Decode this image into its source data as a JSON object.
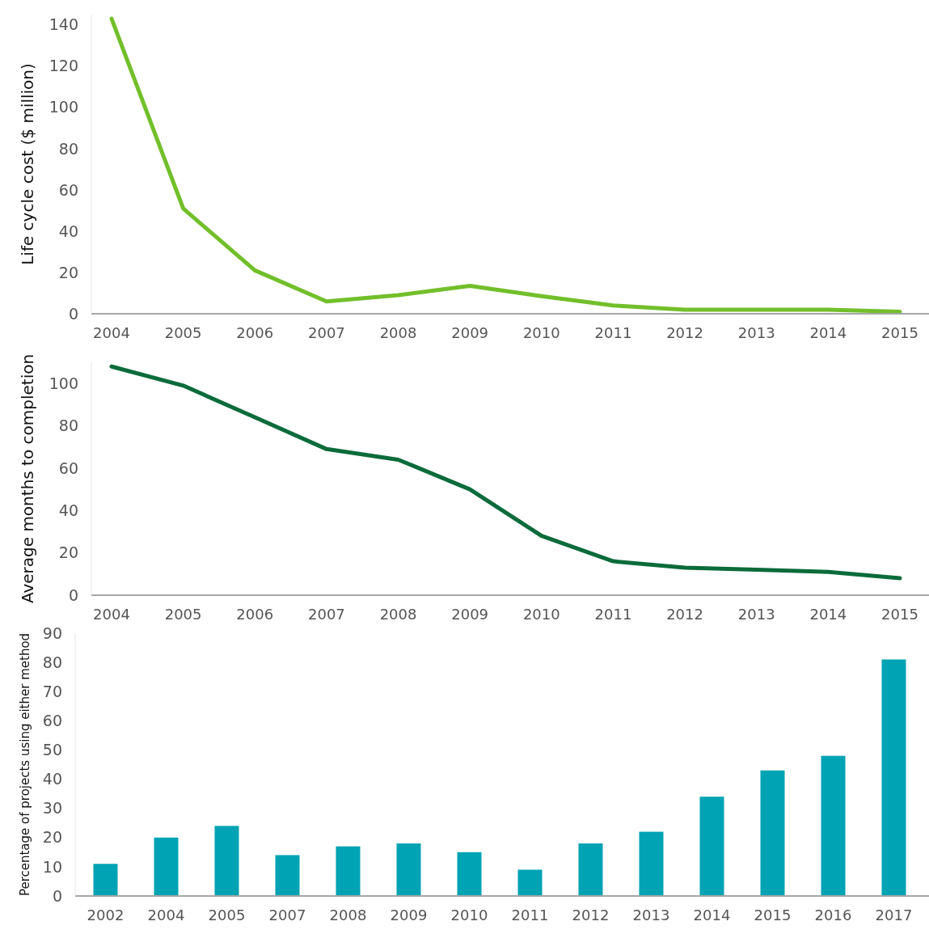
{
  "chart_data": [
    {
      "type": "line",
      "ylabel": "Life cycle cost ($ million)",
      "categories": [
        "2004",
        "2005",
        "2006",
        "2007",
        "2008",
        "2009",
        "2010",
        "2011",
        "2012",
        "2013",
        "2014",
        "2015"
      ],
      "series": [
        {
          "color": "#72bf2a",
          "values": [
            143,
            51,
            21,
            6,
            9,
            13.5,
            8.5,
            4,
            2,
            2,
            2,
            1
          ]
        }
      ],
      "ylim": [
        0,
        145
      ],
      "yticks": [
        0,
        20,
        40,
        60,
        80,
        100,
        120,
        140
      ]
    },
    {
      "type": "line",
      "ylabel": "Average months to completion",
      "categories": [
        "2004",
        "2005",
        "2006",
        "2007",
        "2008",
        "2009",
        "2010",
        "2011",
        "2012",
        "2013",
        "2014",
        "2015"
      ],
      "series": [
        {
          "color": "#0b6b3a",
          "values": [
            108,
            99,
            84,
            69,
            64,
            50,
            28,
            16,
            13,
            12,
            11,
            8
          ]
        }
      ],
      "ylim": [
        0,
        110
      ],
      "yticks": [
        0,
        20,
        40,
        60,
        80,
        100
      ]
    },
    {
      "type": "bar",
      "ylabel": "Percentage of projects using either method",
      "categories": [
        "2002",
        "2004",
        "2005",
        "2007",
        "2008",
        "2009",
        "2010",
        "2011",
        "2012",
        "2013",
        "2014",
        "2015",
        "2016",
        "2017"
      ],
      "series": [
        {
          "color": "#00a3b4",
          "values": [
            11,
            20,
            24,
            14,
            17,
            18,
            15,
            9,
            18,
            22,
            34,
            43,
            48,
            81
          ]
        }
      ],
      "ylim": [
        0,
        90
      ],
      "yticks": [
        0,
        10,
        20,
        30,
        40,
        50,
        60,
        70,
        80,
        90
      ]
    }
  ]
}
